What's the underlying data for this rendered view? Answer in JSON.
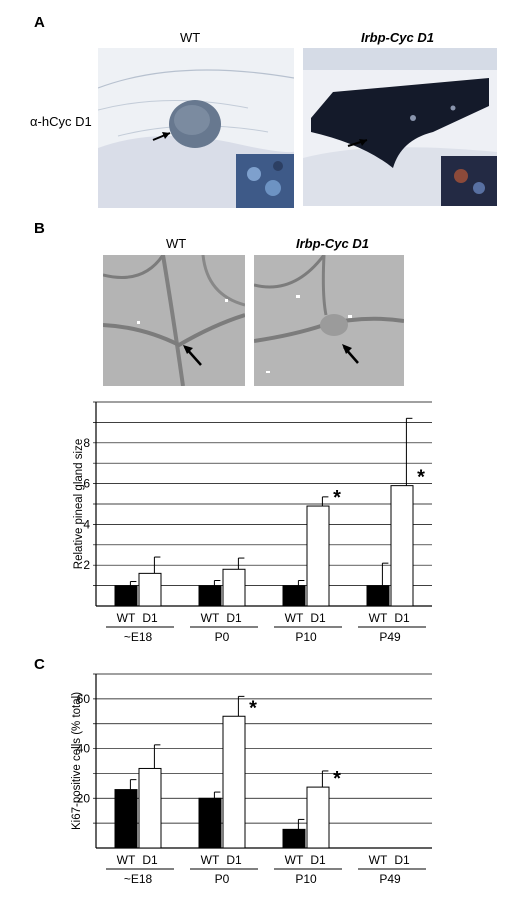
{
  "panel_a": {
    "letter": "A",
    "wt_title": "WT",
    "mut_title": "Irbp-Cyc D1",
    "row_label": "α-hCyc D1"
  },
  "panel_b": {
    "letter": "B",
    "wt_title": "WT",
    "mut_title": "Irbp-Cyc D1"
  },
  "panel_c": {
    "letter": "C"
  },
  "chart_data": [
    {
      "type": "bar",
      "panel": "B",
      "ylabel": "Relative pineal gland size",
      "ylim": [
        0,
        10
      ],
      "yticks": [
        2,
        4,
        6,
        8
      ],
      "grid": true,
      "groups": [
        "~E18",
        "P0",
        "P10",
        "P49"
      ],
      "bar_labels": [
        "WT",
        "D1"
      ],
      "series": [
        {
          "name": "WT",
          "color": "#000000",
          "values": [
            1.0,
            1.0,
            1.0,
            1.0
          ],
          "errors": [
            0.2,
            0.25,
            0.25,
            1.1
          ]
        },
        {
          "name": "D1",
          "color": "#ffffff",
          "values": [
            1.6,
            1.8,
            4.9,
            5.9
          ],
          "errors": [
            0.8,
            0.55,
            0.45,
            3.3
          ]
        }
      ],
      "significance": [
        "",
        "",
        "*",
        "*"
      ]
    },
    {
      "type": "bar",
      "panel": "C",
      "ylabel": "Ki67-positive cells (% total)",
      "ylim": [
        0,
        70
      ],
      "yticks": [
        20,
        40,
        60
      ],
      "grid": true,
      "groups": [
        "~E18",
        "P0",
        "P10",
        "P49"
      ],
      "bar_labels": [
        "WT",
        "D1"
      ],
      "series": [
        {
          "name": "WT",
          "color": "#000000",
          "values": [
            23.5,
            20,
            7.5,
            0
          ],
          "errors": [
            4,
            2.5,
            4,
            0
          ]
        },
        {
          "name": "D1",
          "color": "#ffffff",
          "values": [
            32,
            53,
            24.5,
            0
          ],
          "errors": [
            9.5,
            8,
            6.5,
            0
          ]
        }
      ],
      "significance": [
        "",
        "*",
        "*",
        ""
      ]
    }
  ]
}
